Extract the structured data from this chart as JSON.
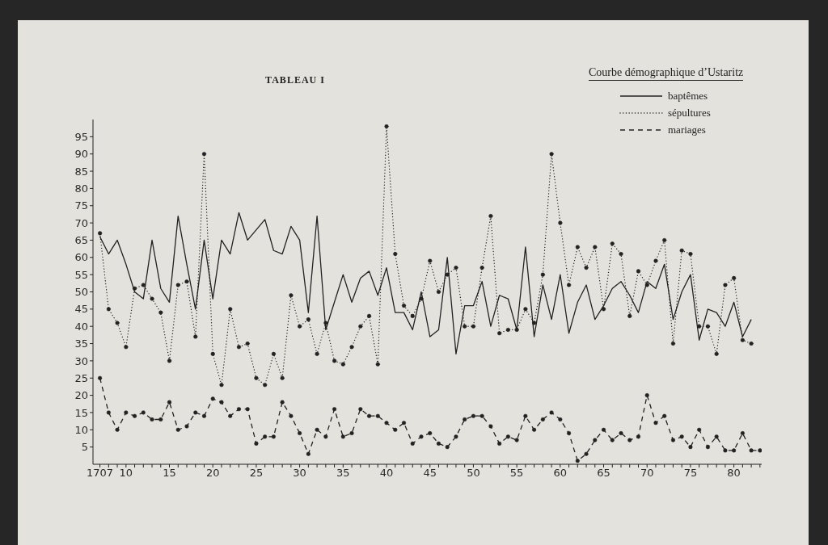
{
  "chart_data": {
    "type": "line",
    "title": "TABLEAU I",
    "subtitle": "Courbe démographique d’Ustaritz",
    "categories": [
      "1707",
      null,
      null,
      "10",
      null,
      null,
      null,
      null,
      "15",
      null,
      null,
      null,
      null,
      "20",
      null,
      null,
      null,
      null,
      "25",
      null,
      null,
      null,
      null,
      "30",
      null,
      null,
      null,
      null,
      "35",
      null,
      null,
      null,
      null,
      "40",
      null,
      null,
      null,
      null,
      "45",
      null,
      null,
      null,
      null,
      "50",
      null,
      null,
      null,
      null,
      "55",
      null,
      null,
      null,
      null,
      "60",
      null,
      null,
      null,
      null,
      "65",
      null,
      null,
      null,
      null,
      "70",
      null,
      null,
      null,
      null,
      "75",
      null,
      null,
      null,
      null,
      "80",
      null,
      null,
      null
    ],
    "ylim": [
      0,
      100
    ],
    "yticks": [
      5,
      10,
      15,
      20,
      25,
      30,
      35,
      40,
      45,
      50,
      55,
      60,
      65,
      70,
      75,
      80,
      85,
      90,
      95
    ],
    "legend": "top right",
    "series": [
      {
        "name": "baptêmes",
        "color": "#222222",
        "line_style": "solid",
        "marker": "none",
        "values": [
          66,
          61,
          65,
          58,
          50,
          48,
          65,
          51,
          47,
          72,
          58,
          45,
          65,
          48,
          65,
          61,
          73,
          65,
          68,
          71,
          62,
          61,
          69,
          65,
          44,
          72,
          39,
          47,
          55,
          47,
          54,
          56,
          49,
          57,
          44,
          44,
          39,
          50,
          37,
          39,
          60,
          32,
          46,
          46,
          53,
          40,
          49,
          48,
          39,
          63,
          37,
          52,
          42,
          55,
          38,
          47,
          52,
          42,
          46,
          51,
          53,
          49,
          44,
          53,
          51,
          58,
          42,
          50,
          55,
          36,
          45,
          44,
          40,
          47,
          37,
          42,
          null
        ]
      },
      {
        "name": "sépultures",
        "color": "#222222",
        "line_style": "dotted",
        "marker": "circle",
        "values": [
          67,
          45,
          41,
          34,
          51,
          52,
          48,
          44,
          30,
          52,
          53,
          37,
          90,
          32,
          23,
          45,
          34,
          35,
          25,
          23,
          32,
          25,
          49,
          40,
          42,
          32,
          41,
          30,
          29,
          34,
          40,
          43,
          29,
          98,
          61,
          46,
          43,
          48,
          59,
          50,
          55,
          57,
          40,
          40,
          57,
          72,
          38,
          39,
          39,
          45,
          41,
          55,
          90,
          70,
          52,
          63,
          57,
          63,
          45,
          64,
          61,
          43,
          56,
          52,
          59,
          65,
          35,
          62,
          61,
          40,
          40,
          32,
          52,
          54,
          36,
          35,
          null
        ]
      },
      {
        "name": "mariages",
        "color": "#222222",
        "line_style": "dashed",
        "marker": "circle",
        "values": [
          25,
          15,
          10,
          15,
          14,
          15,
          13,
          13,
          18,
          10,
          11,
          15,
          14,
          19,
          18,
          14,
          16,
          16,
          6,
          8,
          8,
          18,
          14,
          9,
          3,
          10,
          8,
          16,
          8,
          9,
          16,
          14,
          14,
          12,
          10,
          12,
          6,
          8,
          9,
          6,
          5,
          8,
          13,
          14,
          14,
          11,
          6,
          8,
          7,
          14,
          10,
          13,
          15,
          13,
          9,
          1,
          3,
          7,
          10,
          7,
          9,
          7,
          8,
          20,
          12,
          14,
          7,
          8,
          5,
          10,
          5,
          8,
          4,
          4,
          9,
          4,
          4
        ]
      }
    ]
  }
}
